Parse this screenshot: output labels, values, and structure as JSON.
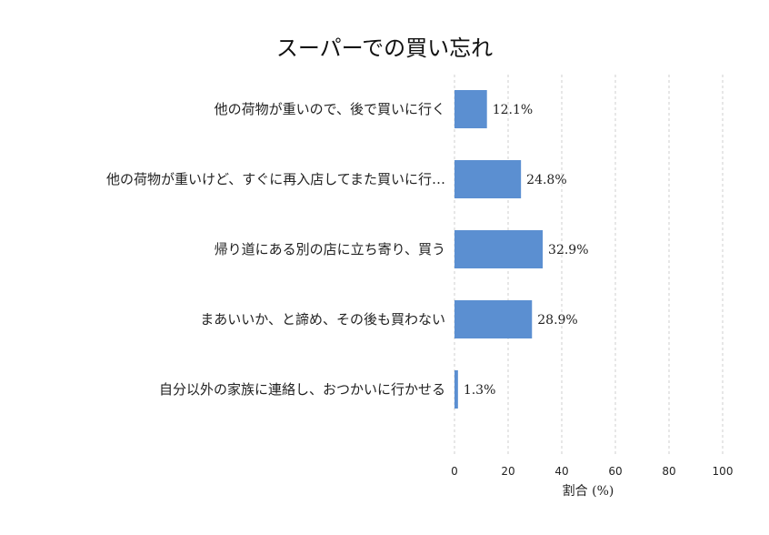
{
  "chart_data": {
    "type": "bar",
    "orientation": "horizontal",
    "title": "スーパーでの買い忘れ",
    "xlabel": "割合 (%)",
    "ylabel": "",
    "xlim": [
      0,
      100
    ],
    "x_ticks": [
      0,
      20,
      40,
      60,
      80,
      100
    ],
    "grid": true,
    "bar_color": "#5b8fd1",
    "categories": [
      "他の荷物が重いので、後で買いに行く",
      "他の荷物が重いけど、すぐに再入店してまた買いに行…",
      "帰り道にある別の店に立ち寄り、買う",
      "まあいいか、と諦め、その後も買わない",
      "自分以外の家族に連絡し、おつかいに行かせる"
    ],
    "values": [
      12.1,
      24.8,
      32.9,
      28.9,
      1.3
    ],
    "value_labels": [
      "12.1%",
      "24.8%",
      "32.9%",
      "28.9%",
      "1.3%"
    ]
  }
}
